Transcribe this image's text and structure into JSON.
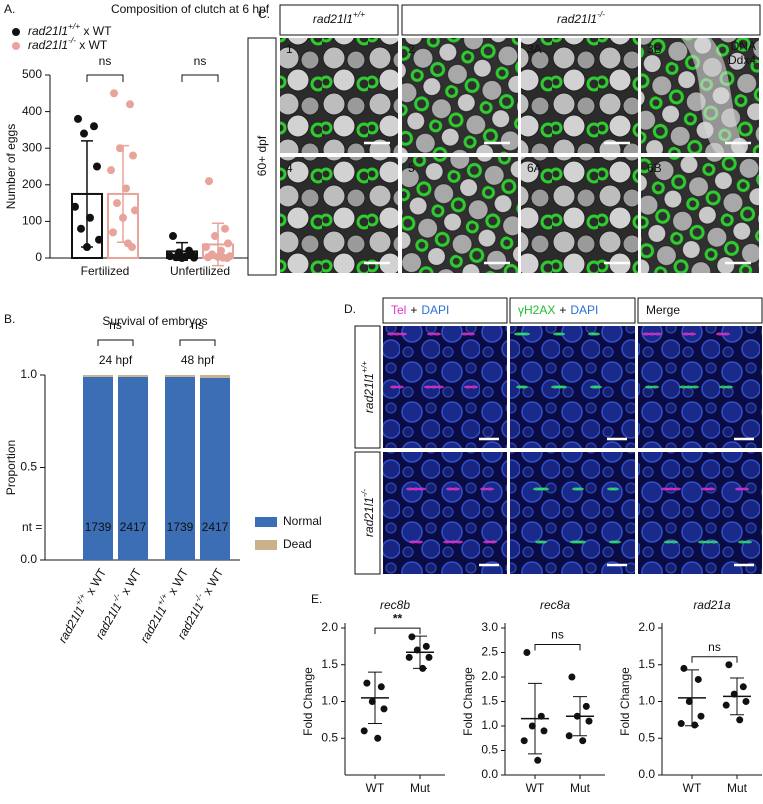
{
  "panel_labels": [
    "A.",
    "B.",
    "C.",
    "D.",
    "E."
  ],
  "chart_data": [
    {
      "type": "bar_scatter",
      "title": "Composition of clutch at 6 hpf",
      "y_label": "Number of eggs",
      "categories": [
        "Fertilized",
        "Unfertilized"
      ],
      "series": [
        {
          "name": "rad21l1+/+ x WT",
          "color": "#111111",
          "values": [
            175,
            18
          ],
          "errors": [
            145,
            24
          ],
          "points": [
            [
              380,
              360,
              340,
              250,
              140,
              110,
              80,
              50,
              30
            ],
            [
              60,
              20,
              15,
              10,
              5,
              3,
              2,
              1,
              0
            ]
          ]
        },
        {
          "name": "rad21l1-/- x WT",
          "color": "#e8a39b",
          "values": [
            175,
            37
          ],
          "errors": [
            132,
            58
          ],
          "points": [
            [
              450,
              420,
              300,
              280,
              240,
              190,
              150,
              130,
              110,
              70,
              40,
              30
            ],
            [
              210,
              80,
              60,
              40,
              30,
              20,
              10,
              5,
              3,
              2,
              1,
              0
            ]
          ]
        }
      ],
      "ylim": [
        0,
        500
      ],
      "yticks": [
        0,
        100,
        200,
        300,
        400,
        500
      ],
      "annotations": [
        "ns",
        "ns"
      ],
      "legend": "top-left"
    },
    {
      "type": "stacked_bar",
      "title": "Survival of embryos",
      "y_label": "Proportion",
      "categories": [
        "rad21l1+/+ x WT",
        "rad21l1-/- x WT",
        "rad21l1+/+ x WT",
        "rad21l1-/- x WT"
      ],
      "series": [
        {
          "name": "Normal",
          "color": "#3b6eb4",
          "values": [
            0.99,
            0.99,
            0.99,
            0.985
          ]
        },
        {
          "name": "Dead",
          "color": "#c9b28a",
          "values": [
            0.01,
            0.01,
            0.01,
            0.015
          ]
        }
      ],
      "ylim": [
        0,
        1
      ],
      "yticks": [
        {
          "value": 0,
          "label": "0.0"
        },
        {
          "value": 0.5,
          "label": "0.5"
        },
        {
          "value": 1,
          "label": "1.0"
        }
      ],
      "groups": [
        "24 hpf",
        "48 hpf"
      ],
      "annotations": [
        "ns",
        "ns"
      ],
      "n_label": "nt =",
      "n": [
        1739,
        2417,
        1739,
        2417
      ],
      "legend": "right"
    },
    {
      "type": "dot_mean_sd",
      "title": "rec8b",
      "y_label": "Fold Change",
      "categories": [
        "WT",
        "Mut"
      ],
      "color": "#111111",
      "points": [
        [
          1.25,
          1.2,
          1.0,
          0.9,
          0.6,
          0.5
        ],
        [
          1.88,
          1.75,
          1.7,
          1.6,
          1.6,
          1.45
        ]
      ],
      "values": [
        1.05,
        1.67
      ],
      "errors": [
        0.35,
        0.22
      ],
      "ylim": [
        0,
        2
      ],
      "yticks": [
        {
          "value": 0.5,
          "label": "0.5"
        },
        {
          "value": 1,
          "label": "1.0"
        },
        {
          "value": 1.5,
          "label": "1.5"
        },
        {
          "value": 2,
          "label": "2.0"
        }
      ],
      "annotation": "**"
    },
    {
      "type": "dot_mean_sd",
      "title": "rec8a",
      "y_label": "Fold Change",
      "categories": [
        "WT",
        "Mut"
      ],
      "color": "#111111",
      "points": [
        [
          2.5,
          1.2,
          1.0,
          0.9,
          0.7,
          0.3
        ],
        [
          2.0,
          1.4,
          1.2,
          1.1,
          0.8,
          0.7
        ]
      ],
      "values": [
        1.15,
        1.2
      ],
      "errors": [
        0.72,
        0.4
      ],
      "ylim": [
        0,
        3
      ],
      "yticks": [
        {
          "value": 0,
          "label": "0.0"
        },
        {
          "value": 0.5,
          "label": "0.5"
        },
        {
          "value": 1,
          "label": "1.0"
        },
        {
          "value": 1.5,
          "label": "1.5"
        },
        {
          "value": 2,
          "label": "2.0"
        },
        {
          "value": 2.5,
          "label": "2.5"
        },
        {
          "value": 3,
          "label": "3.0"
        }
      ],
      "annotation": "ns"
    },
    {
      "type": "dot_mean_sd",
      "title": "rad21a",
      "y_label": "Fold Change",
      "categories": [
        "WT",
        "Mut"
      ],
      "color": "#111111",
      "points": [
        [
          1.45,
          1.3,
          1.0,
          0.8,
          0.7,
          0.68
        ],
        [
          1.5,
          1.2,
          1.1,
          1.0,
          0.95,
          0.75
        ]
      ],
      "values": [
        1.05,
        1.07
      ],
      "errors": [
        0.38,
        0.25
      ],
      "ylim": [
        0,
        2
      ],
      "yticks": [
        {
          "value": 0,
          "label": "0.0"
        },
        {
          "value": 0.5,
          "label": "0.5"
        },
        {
          "value": 1,
          "label": "1.0"
        },
        {
          "value": 1.5,
          "label": "1.5"
        },
        {
          "value": 2,
          "label": "2.0"
        }
      ],
      "annotation": "ns"
    }
  ],
  "panel_c": {
    "headers": [
      "rad21l1+/+",
      "rad21l1-/-"
    ],
    "side_label": "60+ dpf",
    "tiles": [
      "1",
      "2",
      "3A",
      "3B",
      "4",
      "5",
      "6A",
      "6B"
    ],
    "legend": [
      "DNA",
      "Ddx4"
    ],
    "legend_colors": [
      "#ffffff",
      "#22dd22"
    ]
  },
  "panel_d": {
    "columns": [
      [
        "Tel",
        "+",
        "DAPI"
      ],
      [
        "γH2AX",
        "+",
        "DAPI"
      ],
      [
        "Merge"
      ]
    ],
    "column_colors": [
      [
        "#dd33cc",
        "#111111",
        "#2a6fd6"
      ],
      [
        "#22bb33",
        "#111111",
        "#2a6fd6"
      ],
      [
        "#111111"
      ]
    ],
    "rows": [
      "rad21l1+/+",
      "rad21l1-/-"
    ]
  }
}
